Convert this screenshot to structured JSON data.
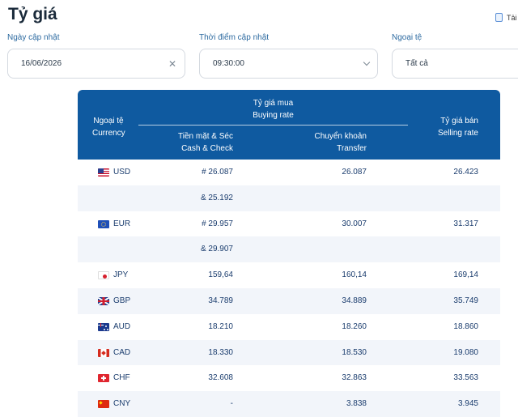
{
  "header": {
    "title": "Tỷ giá",
    "download_label": "Tải"
  },
  "filters": {
    "date": {
      "label": "Ngày cập nhật",
      "value": "16/06/2026"
    },
    "time": {
      "label": "Thời điểm cập nhật",
      "value": "09:30:00"
    },
    "currency": {
      "label": "Ngoại tệ",
      "value": "Tất cả"
    }
  },
  "table": {
    "header": {
      "currency_vi": "Ngoại tệ",
      "currency_en": "Currency",
      "buying_vi": "Tỷ giá mua",
      "buying_en": "Buying rate",
      "cash_vi": "Tiền mặt & Séc",
      "cash_en": "Cash & Check",
      "transfer_vi": "Chuyển khoản",
      "transfer_en": "Transfer",
      "selling_vi": "Tỷ giá bán",
      "selling_en": "Selling rate"
    },
    "rows": [
      {
        "flag": "us-flag-icon",
        "code": "USD",
        "cash": "# 26.087",
        "transfer": "26.087",
        "sell": "26.423"
      },
      {
        "flag": "",
        "code": "",
        "cash": "& 25.192",
        "transfer": "",
        "sell": ""
      },
      {
        "flag": "eu-flag-icon",
        "code": "EUR",
        "cash": "# 29.957",
        "transfer": "30.007",
        "sell": "31.317"
      },
      {
        "flag": "",
        "code": "",
        "cash": "& 29.907",
        "transfer": "",
        "sell": ""
      },
      {
        "flag": "jp-flag-icon",
        "code": "JPY",
        "cash": "159,64",
        "transfer": "160,14",
        "sell": "169,14"
      },
      {
        "flag": "gb-flag-icon",
        "code": "GBP",
        "cash": "34.789",
        "transfer": "34.889",
        "sell": "35.749"
      },
      {
        "flag": "au-flag-icon",
        "code": "AUD",
        "cash": "18.210",
        "transfer": "18.260",
        "sell": "18.860"
      },
      {
        "flag": "ca-flag-icon",
        "code": "CAD",
        "cash": "18.330",
        "transfer": "18.530",
        "sell": "19.080"
      },
      {
        "flag": "ch-flag-icon",
        "code": "CHF",
        "cash": "32.608",
        "transfer": "32.863",
        "sell": "33.563"
      },
      {
        "flag": "cn-flag-icon",
        "code": "CNY",
        "cash": "-",
        "transfer": "3.838",
        "sell": "3.945"
      }
    ]
  },
  "colors": {
    "header_bg": "#0f5aa0",
    "value_text": "#1b3d6e",
    "label_text": "#2c6aa0",
    "alt_row": "#f2f5fa"
  }
}
